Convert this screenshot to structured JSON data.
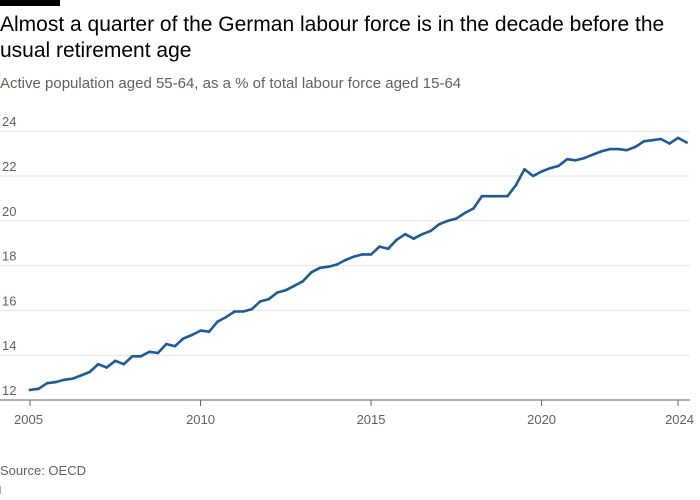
{
  "header": {
    "title": "Almost a quarter of the German labour force is in the decade before the usual retirement age",
    "subtitle": "Active population aged 55-64, as a % of total labour force aged 15-64"
  },
  "footer": {
    "source": "Source: OECD"
  },
  "colors": {
    "line": "#1f5a96",
    "grid": "#e6e4e1",
    "axis": "#66605c"
  },
  "chart_data": {
    "type": "line",
    "title": "Almost a quarter of the German labour force is in the decade before the usual retirement age",
    "subtitle": "Active population aged 55-64, as a % of total labour force aged 15-64",
    "xlabel": "",
    "ylabel": "",
    "xlim": [
      2005,
      2024
    ],
    "ylim": [
      12,
      24.5
    ],
    "grid": true,
    "legend": "none",
    "x_ticks": [
      "2005",
      "2010",
      "2015",
      "2020",
      "2024"
    ],
    "y_ticks": [
      "12",
      "14",
      "16",
      "18",
      "20",
      "22",
      "24"
    ],
    "x": [
      2005.0,
      2005.25,
      2005.5,
      2005.75,
      2006.0,
      2006.25,
      2006.5,
      2006.75,
      2007.0,
      2007.25,
      2007.5,
      2007.75,
      2008.0,
      2008.25,
      2008.5,
      2008.75,
      2009.0,
      2009.25,
      2009.5,
      2009.75,
      2010.0,
      2010.25,
      2010.5,
      2010.75,
      2011.0,
      2011.25,
      2011.5,
      2011.75,
      2012.0,
      2012.25,
      2012.5,
      2012.75,
      2013.0,
      2013.25,
      2013.5,
      2013.75,
      2014.0,
      2014.25,
      2014.5,
      2014.75,
      2015.0,
      2015.25,
      2015.5,
      2015.75,
      2016.0,
      2016.25,
      2016.5,
      2016.75,
      2017.0,
      2017.25,
      2017.5,
      2017.75,
      2018.0,
      2018.25,
      2018.5,
      2018.75,
      2019.0,
      2019.25,
      2019.5,
      2019.75,
      2020.0,
      2020.25,
      2020.5,
      2020.75,
      2021.0,
      2021.25,
      2021.5,
      2021.75,
      2022.0,
      2022.25,
      2022.5,
      2022.75,
      2023.0,
      2023.25,
      2023.5,
      2023.75,
      2024.0,
      2024.25
    ],
    "series": [
      {
        "values": [
          12.45,
          12.5,
          12.75,
          12.8,
          12.9,
          12.95,
          13.1,
          13.25,
          13.6,
          13.45,
          13.75,
          13.6,
          13.95,
          13.95,
          14.15,
          14.1,
          14.5,
          14.4,
          14.75,
          14.9,
          15.1,
          15.05,
          15.5,
          15.7,
          15.95,
          15.95,
          16.05,
          16.4,
          16.5,
          16.8,
          16.9,
          17.1,
          17.3,
          17.7,
          17.9,
          17.95,
          18.05,
          18.25,
          18.4,
          18.5,
          18.5,
          18.85,
          18.75,
          19.15,
          19.4,
          19.2,
          19.4,
          19.55,
          19.85,
          20.0,
          20.1,
          20.35,
          20.55,
          21.1,
          21.1,
          21.1,
          21.1,
          21.6,
          22.3,
          22.0,
          22.2,
          22.35,
          22.45,
          22.75,
          22.7,
          22.8,
          22.95,
          23.1,
          23.2,
          23.2,
          23.15,
          23.3,
          23.55,
          23.6,
          23.65,
          23.45,
          23.7,
          23.5
        ]
      }
    ]
  }
}
